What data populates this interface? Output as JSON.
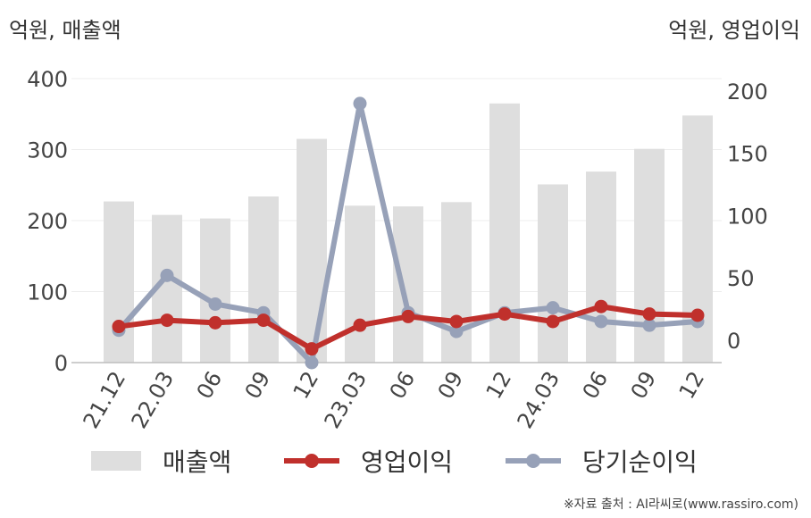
{
  "units": {
    "left": "억원, 매출액",
    "right": "억원, 영업이익"
  },
  "legend": [
    {
      "label": "매출액",
      "kind": "bar"
    },
    {
      "label": "영업이익",
      "kind": "line"
    },
    {
      "label": "당기순이익",
      "kind": "line"
    }
  ],
  "source": "※자료 출처 : AI라씨로(www.rassiro.com)",
  "chart_data": {
    "type": "bar+line",
    "categories": [
      "21.12",
      "22.03",
      "06",
      "09",
      "12",
      "23.03",
      "06",
      "09",
      "12",
      "24.03",
      "06",
      "09",
      "12"
    ],
    "left_axis": {
      "ticks": [
        0,
        100,
        200,
        300,
        400
      ],
      "ylim": [
        0,
        400
      ]
    },
    "right_axis": {
      "ticks": [
        0,
        50,
        100,
        150,
        200
      ],
      "ylim": [
        -18,
        210
      ]
    },
    "series": [
      {
        "name": "매출액",
        "type": "bar",
        "axis": "left",
        "color": "#dedede",
        "values": [
          227,
          208,
          203,
          234,
          315,
          221,
          220,
          226,
          365,
          251,
          269,
          301,
          348
        ]
      },
      {
        "name": "영업이익",
        "type": "line",
        "axis": "right",
        "color": "#c0302c",
        "values": [
          11,
          16,
          14,
          16,
          -7,
          12,
          19,
          15,
          21,
          15,
          27,
          21,
          20
        ]
      },
      {
        "name": "당기순이익",
        "type": "line",
        "axis": "right",
        "color": "#97a1b8",
        "values": [
          8,
          52,
          29,
          22,
          -18,
          190,
          22,
          7,
          22,
          26,
          15,
          12,
          15
        ]
      }
    ],
    "grid": true
  }
}
